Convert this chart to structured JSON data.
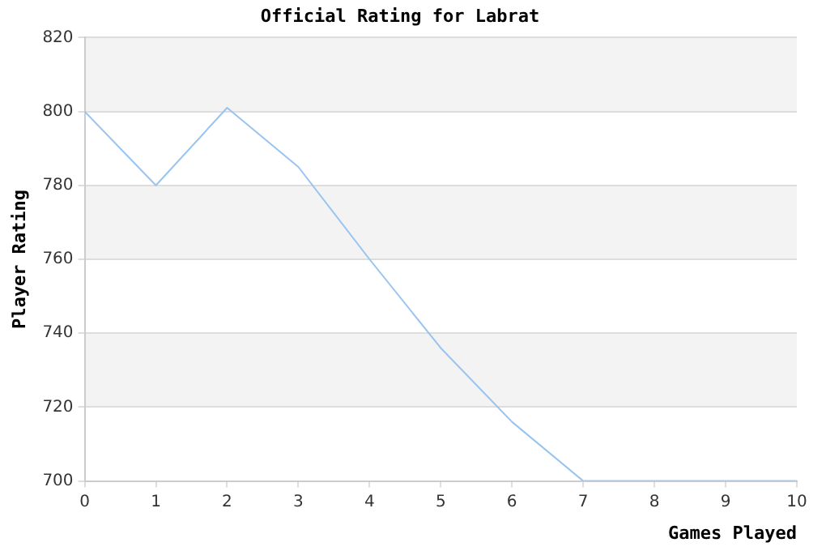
{
  "chart_data": {
    "type": "line",
    "title": "Official Rating for Labrat",
    "xlabel": "Games Played",
    "ylabel": "Player Rating",
    "x": [
      0,
      1,
      2,
      3,
      4,
      5,
      6,
      7,
      8,
      9,
      10
    ],
    "series": [
      {
        "color": "#99c4f0",
        "values": [
          800,
          780,
          801,
          785,
          760,
          736,
          716,
          700,
          700,
          700,
          700
        ]
      }
    ],
    "xlim": [
      0,
      10
    ],
    "xticks": [
      0,
      1,
      2,
      3,
      4,
      5,
      6,
      7,
      8,
      9,
      10
    ],
    "ylim": [
      700,
      820
    ],
    "yticks": [
      700,
      720,
      740,
      760,
      780,
      800,
      820
    ],
    "grid": "y",
    "legend": false,
    "marker": "none",
    "line_style": "solid"
  }
}
